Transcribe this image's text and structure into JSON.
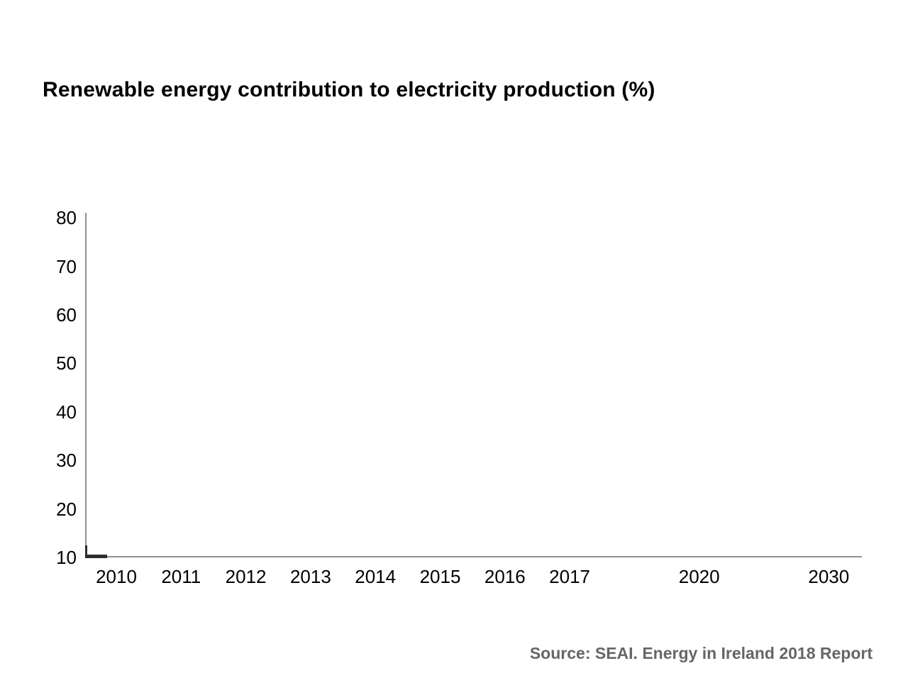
{
  "page": {
    "title": "Renewable energy contribution to electricity production (%)",
    "source": "Source: SEAI. Energy in Ireland 2018 Report"
  },
  "chart_data": {
    "type": "bar",
    "title": "Renewable energy contribution to electricity production (%)",
    "categories": [
      "2010",
      "2011",
      "2012",
      "2013",
      "2014",
      "2015",
      "2016",
      "2017",
      "2020",
      "2030"
    ],
    "values": [],
    "y_ticks": [
      80,
      70,
      60,
      50,
      40,
      30,
      20,
      10
    ],
    "ylim": [
      10,
      80
    ],
    "grid": false,
    "legend": "none",
    "axis_color": "#8f8f8f",
    "corner_mark_color": "#2d2d2d",
    "title_color": "#000000",
    "tick_label_color": "#000000",
    "source_color": "#666666",
    "source": "Source: SEAI. Energy in Ireland 2018 Report"
  }
}
